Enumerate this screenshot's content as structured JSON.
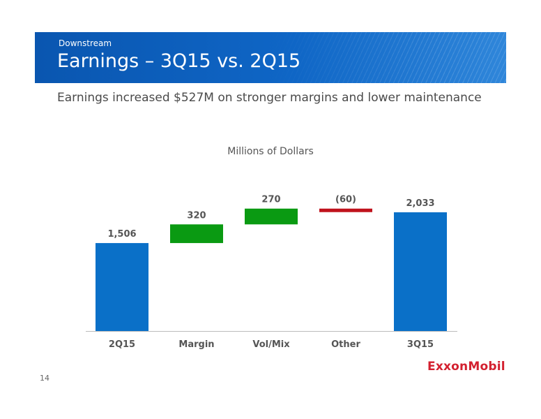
{
  "header": {
    "kicker": "Downstream",
    "title": "Earnings – 3Q15 vs. 2Q15",
    "band_color": "#0f66c6"
  },
  "subtitle": "Earnings increased $527M on stronger margins and lower maintenance",
  "chart_data": {
    "type": "bar",
    "subtype": "waterfall",
    "unit_label": "Millions of Dollars",
    "categories": [
      "2Q15",
      "Margin",
      "Vol/Mix",
      "Other",
      "3Q15"
    ],
    "values": [
      1506,
      320,
      270,
      -60,
      2033
    ],
    "bar_kinds": [
      "total",
      "delta",
      "delta",
      "delta",
      "total"
    ],
    "data_labels": [
      "1,506",
      "320",
      "270",
      "(60)",
      "2,033"
    ],
    "colors": {
      "total": "#0a70c8",
      "increase": "#0a9a12",
      "decrease": "#c0121c",
      "axis": "#bbbbbb"
    },
    "ylim": [
      0,
      2033
    ],
    "grid": false,
    "legend": "none"
  },
  "footer": {
    "page_number": "14",
    "logo_text": "ExxonMobil",
    "logo_color": "#d3202f"
  }
}
